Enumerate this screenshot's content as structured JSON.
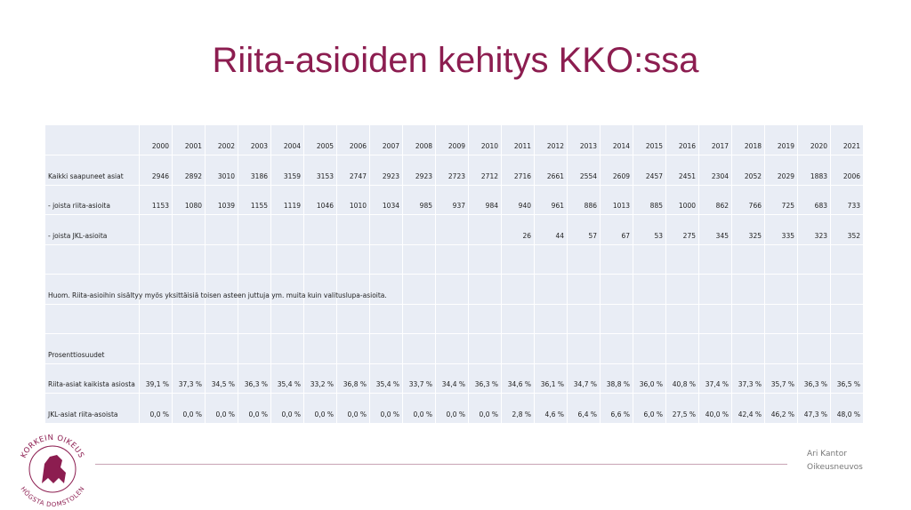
{
  "header": {
    "title": "Riita-asioiden kehitys KKO:ssa"
  },
  "table": {
    "rows": [
      [
        null,
        "2000",
        "2001",
        "2002",
        "2003",
        "2004",
        "2005",
        "2006",
        "2007",
        "2008",
        "2009",
        "2010",
        "2011",
        "2012",
        "2013",
        "2014",
        "2015",
        "2016",
        "2017",
        "2018",
        "2019",
        "2020",
        "2021"
      ],
      [
        "Kaikki saapuneet asiat",
        "2946",
        "2892",
        "3010",
        "3186",
        "3159",
        "3153",
        "2747",
        "2923",
        "2923",
        "2723",
        "2712",
        "2716",
        "2661",
        "2554",
        "2609",
        "2457",
        "2451",
        "2304",
        "2052",
        "2029",
        "1883",
        "2006"
      ],
      [
        "- joista riita-asioita",
        "1153",
        "1080",
        "1039",
        "1155",
        "1119",
        "1046",
        "1010",
        "1034",
        "985",
        "937",
        "984",
        "940",
        "961",
        "886",
        "1013",
        "885",
        "1000",
        "862",
        "766",
        "725",
        "683",
        "733"
      ],
      [
        "- joista JKL-asioita",
        null,
        null,
        null,
        null,
        null,
        null,
        null,
        null,
        null,
        null,
        null,
        "26",
        "44",
        "57",
        "67",
        "53",
        "275",
        "345",
        "325",
        "335",
        "323",
        "352"
      ],
      [],
      [
        "Huom. Riita-asioihin sisältyy myös yksittäisiä toisen asteen juttuja ym. muita kuin valituslupa-asioita."
      ],
      [],
      [
        "Prosenttiosuudet"
      ],
      [
        "Riita-asiat kaikista asiosta",
        "39,1 %",
        "37,3 %",
        "34,5 %",
        "36,3 %",
        "35,4 %",
        "33,2 %",
        "36,8 %",
        "35,4 %",
        "33,7 %",
        "34,4 %",
        "36,3 %",
        "34,6 %",
        "36,1 %",
        "34,7 %",
        "38,8 %",
        "36,0 %",
        "40,8 %",
        "37,4 %",
        "37,3 %",
        "35,7 %",
        "36,3 %",
        "36,5 %"
      ],
      [
        "JKL-asiat riita-asoista",
        "0,0 %",
        "0,0 %",
        "0,0 %",
        "0,0 %",
        "0,0 %",
        "0,0 %",
        "0,0 %",
        "0,0 %",
        "0,0 %",
        "0,0 %",
        "0,0 %",
        "2,8 %",
        "4,6 %",
        "6,4 %",
        "6,6 %",
        "6,0 %",
        "27,5 %",
        "40,0 %",
        "42,4 %",
        "46,2 %",
        "47,3 %",
        "48,0 %"
      ]
    ]
  },
  "logo": {
    "top": "KORKEIN OIKEUS",
    "bottom": "HÖGSTA DOMSTOLEN"
  },
  "footer": {
    "name": "Ari Kantor",
    "role": "Oikeusneuvos"
  }
}
